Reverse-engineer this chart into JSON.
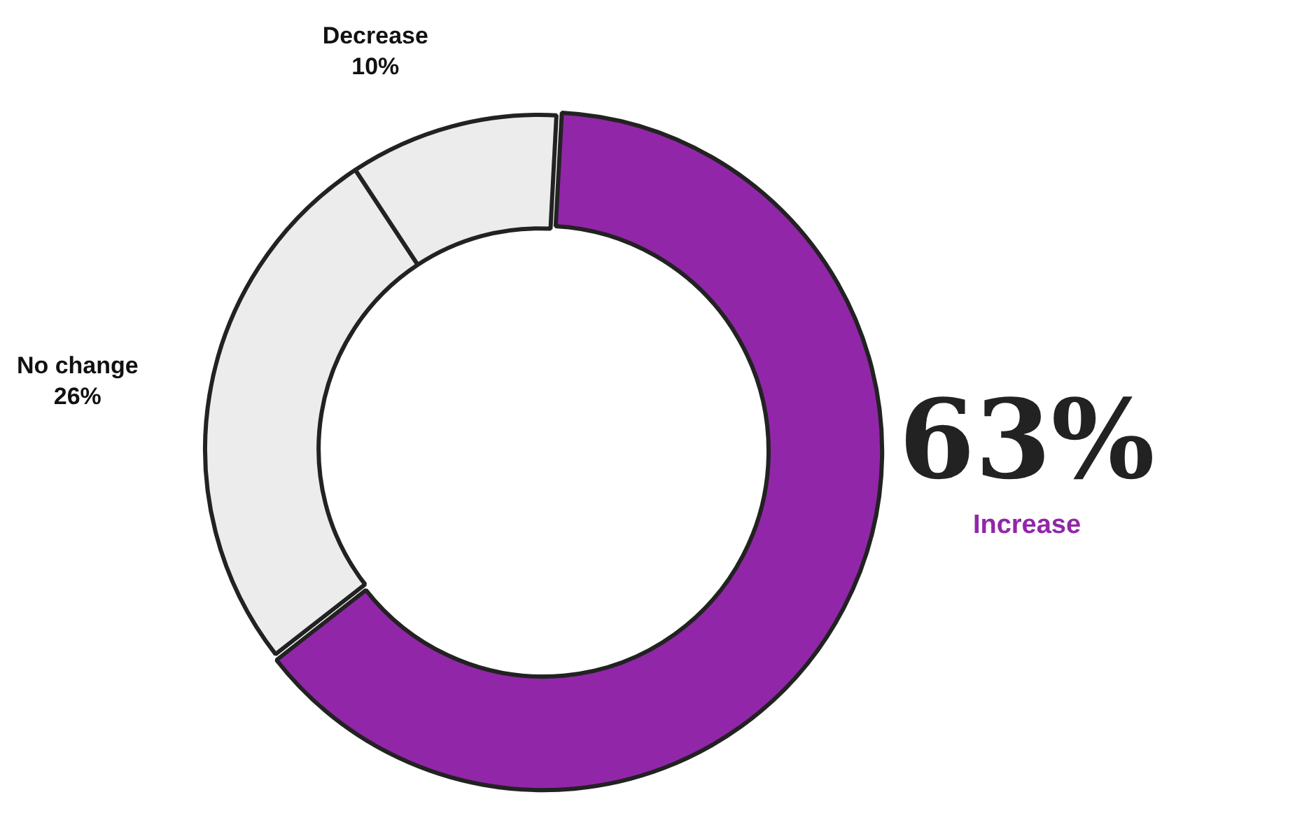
{
  "chart_data": {
    "type": "donut",
    "categories": [
      "Increase",
      "No change",
      "Decrease"
    ],
    "values": [
      63,
      26,
      10
    ],
    "value_labels": [
      "63%",
      "26%",
      "10%"
    ],
    "colors": [
      "#9127a8",
      "#ececec",
      "#ececec"
    ],
    "legend": false
  }
}
